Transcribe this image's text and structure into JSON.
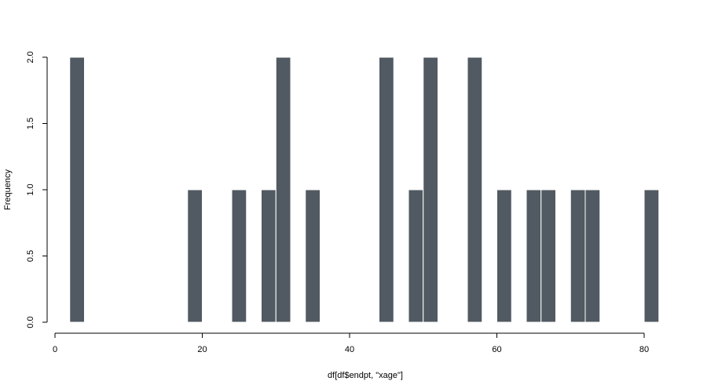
{
  "chart_data": {
    "type": "bar",
    "title": "",
    "xlabel": "df[df$endpt, \"xage\"]",
    "ylabel": "Frequency",
    "xlim": [
      0,
      82
    ],
    "ylim": [
      0,
      2
    ],
    "bin_width": 2,
    "x_ticks": [
      0,
      20,
      40,
      60,
      80
    ],
    "y_ticks": [
      0.0,
      0.5,
      1.0,
      1.5,
      2.0
    ],
    "y_tick_labels": [
      "0.0",
      "0.5",
      "1.0",
      "1.5",
      "2.0"
    ],
    "grid": false,
    "legend": "none",
    "bar_color": "#515a62",
    "bins": [
      {
        "x0": 2,
        "x1": 4,
        "count": 2
      },
      {
        "x0": 18,
        "x1": 20,
        "count": 1
      },
      {
        "x0": 24,
        "x1": 26,
        "count": 1
      },
      {
        "x0": 28,
        "x1": 30,
        "count": 1
      },
      {
        "x0": 30,
        "x1": 32,
        "count": 2
      },
      {
        "x0": 34,
        "x1": 36,
        "count": 1
      },
      {
        "x0": 44,
        "x1": 46,
        "count": 2
      },
      {
        "x0": 48,
        "x1": 50,
        "count": 1
      },
      {
        "x0": 50,
        "x1": 52,
        "count": 2
      },
      {
        "x0": 56,
        "x1": 58,
        "count": 2
      },
      {
        "x0": 60,
        "x1": 62,
        "count": 1
      },
      {
        "x0": 64,
        "x1": 66,
        "count": 1
      },
      {
        "x0": 66,
        "x1": 68,
        "count": 1
      },
      {
        "x0": 70,
        "x1": 72,
        "count": 1
      },
      {
        "x0": 72,
        "x1": 74,
        "count": 1
      },
      {
        "x0": 80,
        "x1": 82,
        "count": 1
      }
    ]
  }
}
